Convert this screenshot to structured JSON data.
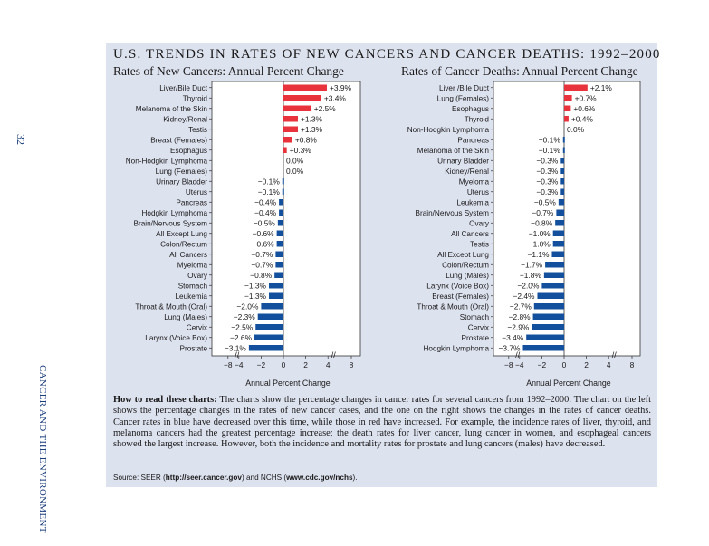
{
  "page": {
    "page_number": "32",
    "side_label": "CANCER AND THE ENVIRONMENT",
    "main_title": "U.S. TRENDS IN RATES OF NEW CANCERS AND CANCER DEATHS: 1992–2000",
    "how_to_read_heading": "How to read these charts:",
    "how_to_read_body": "The charts show the percentage changes in cancer rates for several cancers from 1992–2000. The chart on the left shows the percentage changes in the rates of new cancer cases, and the one on the right shows the changes in the rates of cancer deaths. Cancer rates in blue have decreased over this time, while those in red have increased. For example, the incidence rates of liver, thyroid, and melanoma cancers had the greatest percentage increase; the death rates for liver cancer, lung cancer in women, and esophageal cancers showed the largest increase. However, both the incidence and mortality rates for prostate and lung cancers (males) have decreased.",
    "source_prefix": "Source: SEER (",
    "source_link1": "http://seer.cancer.gov",
    "source_middle": ") and NCHS (",
    "source_link2": "www.cdc.gov/nchs",
    "source_suffix": ")."
  },
  "colors": {
    "increase": "#e8333c",
    "decrease": "#12509e",
    "panel": "#dde2ef"
  },
  "chart_data": [
    {
      "type": "bar",
      "orientation": "horizontal",
      "title": "Rates of New Cancers: Annual Percent Change",
      "xlabel": "Annual Percent Change",
      "xlim": [
        -8,
        8
      ],
      "xticks": [
        "−8",
        "−4",
        "−2",
        "0",
        "2",
        "4",
        "8"
      ],
      "axis_break": "between 4 and 8",
      "categories": [
        "Liver/Bile Duct",
        "Thyroid",
        "Melanoma of the Skin",
        "Kidney/Renal",
        "Testis",
        "Breast (Females)",
        "Esophagus",
        "Non-Hodgkin Lymphoma",
        "Lung (Females)",
        "Urinary Bladder",
        "Uterus",
        "Pancreas",
        "Hodgkin Lymphoma",
        "Brain/Nervous System",
        "All Except Lung",
        "Colon/Rectum",
        "All Cancers",
        "Myeloma",
        "Ovary",
        "Stomach",
        "Leukemia",
        "Throat & Mouth (Oral)",
        "Lung (Males)",
        "Cervix",
        "Larynx (Voice Box)",
        "Prostate"
      ],
      "values": [
        3.9,
        3.4,
        2.5,
        1.3,
        1.3,
        0.8,
        0.3,
        0.0,
        0.0,
        -0.1,
        -0.1,
        -0.4,
        -0.4,
        -0.5,
        -0.6,
        -0.6,
        -0.7,
        -0.7,
        -0.8,
        -1.3,
        -1.3,
        -2.0,
        -2.3,
        -2.5,
        -2.6,
        -3.1
      ],
      "value_labels": [
        "+3.9%",
        "+3.4%",
        "+2.5%",
        "+1.3%",
        "+1.3%",
        "+0.8%",
        "+0.3%",
        "0.0%",
        "0.0%",
        "−0.1%",
        "−0.1%",
        "−0.4%",
        "−0.4%",
        "−0.5%",
        "−0.6%",
        "−0.6%",
        "−0.7%",
        "−0.7%",
        "−0.8%",
        "−1.3%",
        "−1.3%",
        "−2.0%",
        "−2.3%",
        "−2.5%",
        "−2.6%",
        "−3.1%"
      ]
    },
    {
      "type": "bar",
      "orientation": "horizontal",
      "title": "Rates of Cancer Deaths: Annual Percent Change",
      "xlabel": "Annual Percent Change",
      "xlim": [
        -8,
        8
      ],
      "xticks": [
        "−8",
        "−4",
        "−2",
        "0",
        "2",
        "4",
        "8"
      ],
      "axis_break": "between 4 and 8",
      "categories": [
        "Liver /Bile Duct",
        "Lung (Females)",
        "Esophagus",
        "Thyroid",
        "Non-Hodgkin Lymphoma",
        "Pancreas",
        "Melanoma of the Skin",
        "Urinary Bladder",
        "Kidney/Renal",
        "Myeloma",
        "Uterus",
        "Leukemia",
        "Brain/Nervous System",
        "Ovary",
        "All Cancers",
        "Testis",
        "All Except Lung",
        "Colon/Rectum",
        "Lung (Males)",
        "Larynx (Voice Box)",
        "Breast (Females)",
        "Throat & Mouth (Oral)",
        "Stomach",
        "Cervix",
        "Prostate",
        "Hodgkin Lymphoma"
      ],
      "values": [
        2.1,
        0.7,
        0.6,
        0.4,
        0.0,
        -0.1,
        -0.1,
        -0.3,
        -0.3,
        -0.3,
        -0.3,
        -0.5,
        -0.7,
        -0.8,
        -1.0,
        -1.0,
        -1.1,
        -1.7,
        -1.8,
        -2.0,
        -2.4,
        -2.7,
        -2.8,
        -2.9,
        -3.4,
        -3.7
      ],
      "value_labels": [
        "+2.1%",
        "+0.7%",
        "+0.6%",
        "+0.4%",
        "0.0%",
        "−0.1%",
        "−0.1%",
        "−0.3%",
        "−0.3%",
        "−0.3%",
        "−0.3%",
        "−0.5%",
        "−0.7%",
        "−0.8%",
        "−1.0%",
        "−1.0%",
        "−1.1%",
        "−1.7%",
        "−1.8%",
        "−2.0%",
        "−2.4%",
        "−2.7%",
        "−2.8%",
        "−2.9%",
        "−3.4%",
        "−3.7%"
      ]
    }
  ]
}
